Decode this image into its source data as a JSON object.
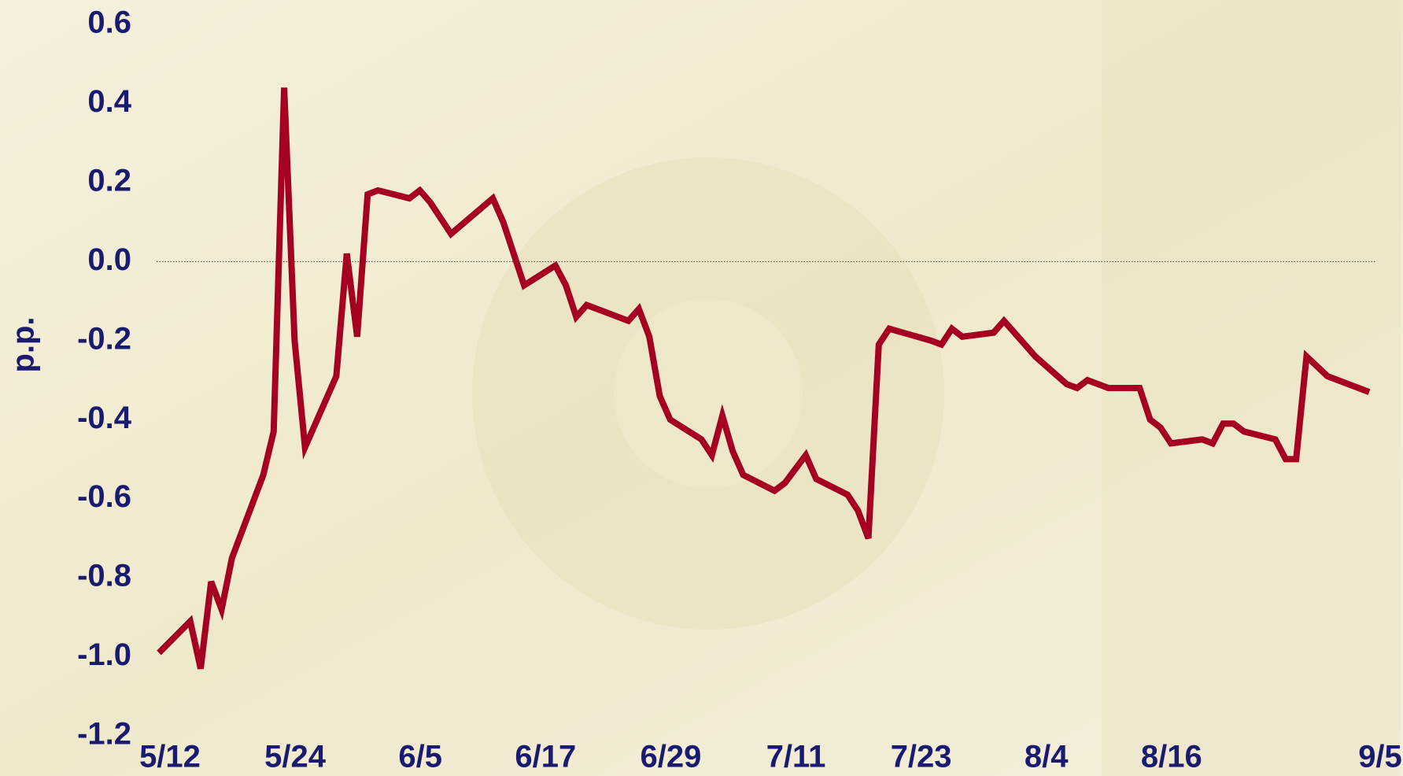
{
  "chart_data": {
    "type": "line",
    "ylabel": "p.p.",
    "x": [
      "5/12",
      "5/15",
      "5/16",
      "5/17",
      "5/18",
      "5/19",
      "5/22",
      "5/23",
      "5/24",
      "5/25",
      "5/26",
      "5/29",
      "5/30",
      "5/31",
      "6/1",
      "6/2",
      "6/5",
      "6/6",
      "6/7",
      "6/9",
      "6/13",
      "6/14",
      "6/16",
      "6/19",
      "6/20",
      "6/21",
      "6/22",
      "6/23",
      "6/26",
      "6/27",
      "6/28",
      "6/29",
      "6/30",
      "7/3",
      "7/4",
      "7/5",
      "7/6",
      "7/7",
      "7/10",
      "7/11",
      "7/13",
      "7/14",
      "7/17",
      "7/18",
      "7/19",
      "7/20",
      "7/21",
      "7/25",
      "7/26",
      "7/27",
      "7/28",
      "7/31",
      "8/1",
      "8/3",
      "8/4",
      "8/7",
      "8/8",
      "8/9",
      "8/11",
      "8/14",
      "8/15",
      "8/16",
      "8/17",
      "8/20",
      "8/21",
      "8/22",
      "8/23",
      "8/24",
      "8/27",
      "8/28",
      "8/29",
      "8/30",
      "9/1",
      "9/5"
    ],
    "series": [
      {
        "color": "#a50021",
        "values": [
          -0.99,
          -0.91,
          -1.03,
          -0.81,
          -0.88,
          -0.75,
          -0.54,
          -0.43,
          0.44,
          -0.2,
          -0.47,
          -0.29,
          0.02,
          -0.19,
          0.17,
          0.18,
          0.16,
          0.18,
          0.15,
          0.07,
          0.16,
          0.1,
          -0.06,
          -0.01,
          -0.06,
          -0.14,
          -0.11,
          -0.12,
          -0.15,
          -0.12,
          -0.19,
          -0.34,
          -0.4,
          -0.45,
          -0.49,
          -0.39,
          -0.48,
          -0.54,
          -0.58,
          -0.56,
          -0.49,
          -0.55,
          -0.59,
          -0.63,
          -0.7,
          -0.21,
          -0.17,
          -0.2,
          -0.21,
          -0.17,
          -0.19,
          -0.18,
          -0.15,
          -0.21,
          -0.24,
          -0.31,
          -0.32,
          -0.3,
          -0.32,
          -0.32,
          -0.4,
          -0.42,
          -0.46,
          -0.45,
          -0.46,
          -0.41,
          -0.41,
          -0.43,
          -0.45,
          -0.5,
          -0.5,
          -0.24,
          -0.29,
          -0.33
        ]
      }
    ],
    "xlim": [
      "5/12",
      "9/5"
    ],
    "xticks": [
      "5/12",
      "5/24",
      "6/5",
      "6/17",
      "6/29",
      "7/11",
      "7/23",
      "8/4",
      "8/16",
      "9/5"
    ],
    "ylim": [
      -1.2,
      0.6
    ],
    "yticks": [
      -1.2,
      {
        "value": -1,
        "label": "-1.0"
      },
      -0.8,
      -0.6,
      -0.4,
      -0.2,
      {
        "value": 0,
        "label": "0.0"
      },
      0.2,
      0.4,
      0.6
    ],
    "zero_line": true
  }
}
